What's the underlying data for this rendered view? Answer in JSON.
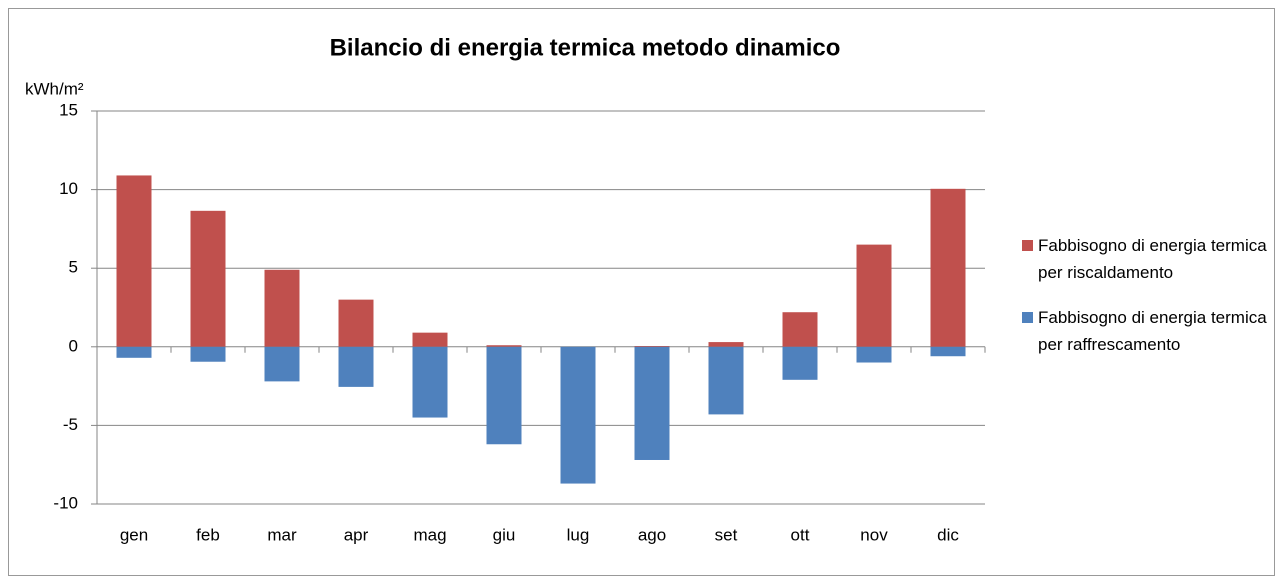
{
  "chart_data": {
    "type": "bar",
    "title": "Bilancio di energia termica metodo dinamico",
    "y_label": "kWh/m²",
    "categories": [
      "gen",
      "feb",
      "mar",
      "apr",
      "mag",
      "giu",
      "lug",
      "ago",
      "set",
      "ott",
      "nov",
      "dic"
    ],
    "series": [
      {
        "name": "Fabbisogno di energia termica per riscaldamento",
        "color": "#c0504d",
        "values": [
          10.9,
          8.65,
          4.9,
          3.0,
          0.9,
          0.1,
          0,
          0.05,
          0.3,
          2.2,
          6.5,
          10.05
        ]
      },
      {
        "name": "Fabbisogno di energia termica per raffrescamento",
        "color": "#4f81bd",
        "values": [
          -0.7,
          -0.95,
          -2.2,
          -2.55,
          -4.5,
          -6.2,
          -8.7,
          -7.2,
          -4.3,
          -2.1,
          -1.0,
          -0.6
        ]
      }
    ],
    "ylim": [
      -10,
      15
    ],
    "yticks": [
      -10,
      -5,
      0,
      5,
      10,
      15
    ],
    "grid": true,
    "legend": "right"
  }
}
